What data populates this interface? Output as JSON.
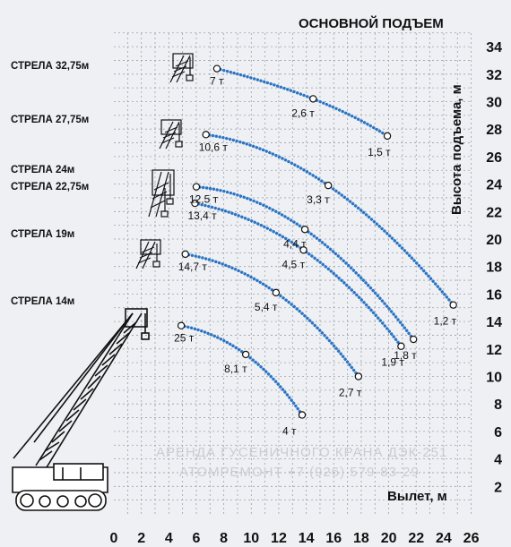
{
  "chart_data": {
    "type": "line",
    "title": "ОСНОВНОЙ ПОДЪЕМ",
    "xlabel": "Вылет, м",
    "ylabel": "Высота подъема, м",
    "xlim": [
      0,
      26
    ],
    "ylim": [
      0,
      34
    ],
    "x_ticks": [
      "0",
      "2",
      "4",
      "6",
      "8",
      "10",
      "12",
      "14",
      "16",
      "18",
      "20",
      "22",
      "24",
      "26"
    ],
    "y_ticks": [
      "2",
      "4",
      "6",
      "8",
      "10",
      "12",
      "14",
      "16",
      "18",
      "20",
      "22",
      "24",
      "26",
      "28",
      "30",
      "32",
      "34"
    ],
    "grid": true,
    "series_color": "#2b74c4",
    "series": [
      {
        "name": "СТРЕЛА 32,75м",
        "x": [
          7.5,
          14.5,
          19.9
        ],
        "y": [
          32.4,
          30.2,
          27.5
        ],
        "labels": [
          "7 т",
          "2,6 т",
          "1,5 т"
        ]
      },
      {
        "name": "СТРЕЛА 27,75м",
        "x": [
          6.7,
          15.6,
          24.7
        ],
        "y": [
          27.6,
          23.9,
          15.2
        ],
        "labels": [
          "10,6 т",
          "3,3 т",
          "1,2 т"
        ]
      },
      {
        "name": "СТРЕЛА 24м",
        "x": [
          6.0,
          13.9,
          21.8
        ],
        "y": [
          23.8,
          20.7,
          12.7
        ],
        "labels": [
          "12,5 т",
          "4,4 т",
          "1,8 т"
        ]
      },
      {
        "name": "СТРЕЛА 22,75м",
        "x": [
          5.9,
          13.8,
          20.9
        ],
        "y": [
          22.6,
          19.2,
          12.2
        ],
        "labels": [
          "13,4 т",
          "4,5 т",
          "1,9 т"
        ]
      },
      {
        "name": "СТРЕЛА 19м",
        "x": [
          5.2,
          11.8,
          17.8
        ],
        "y": [
          18.9,
          16.1,
          10.0
        ],
        "labels": [
          "14,7 т",
          "5,4 т",
          "2,7 т"
        ]
      },
      {
        "name": "СТРЕЛА 14м",
        "x": [
          4.9,
          9.6,
          13.7
        ],
        "y": [
          13.7,
          11.6,
          7.2
        ],
        "labels": [
          "25 т",
          "8,1 т",
          "4 т"
        ]
      }
    ]
  },
  "watermark": [
    "АРЕНДА ГУСЕНИЧНОГО КРАНА ДЭК-251",
    "АТОМРЕМОНТ +7 (926) 579-83-29"
  ]
}
